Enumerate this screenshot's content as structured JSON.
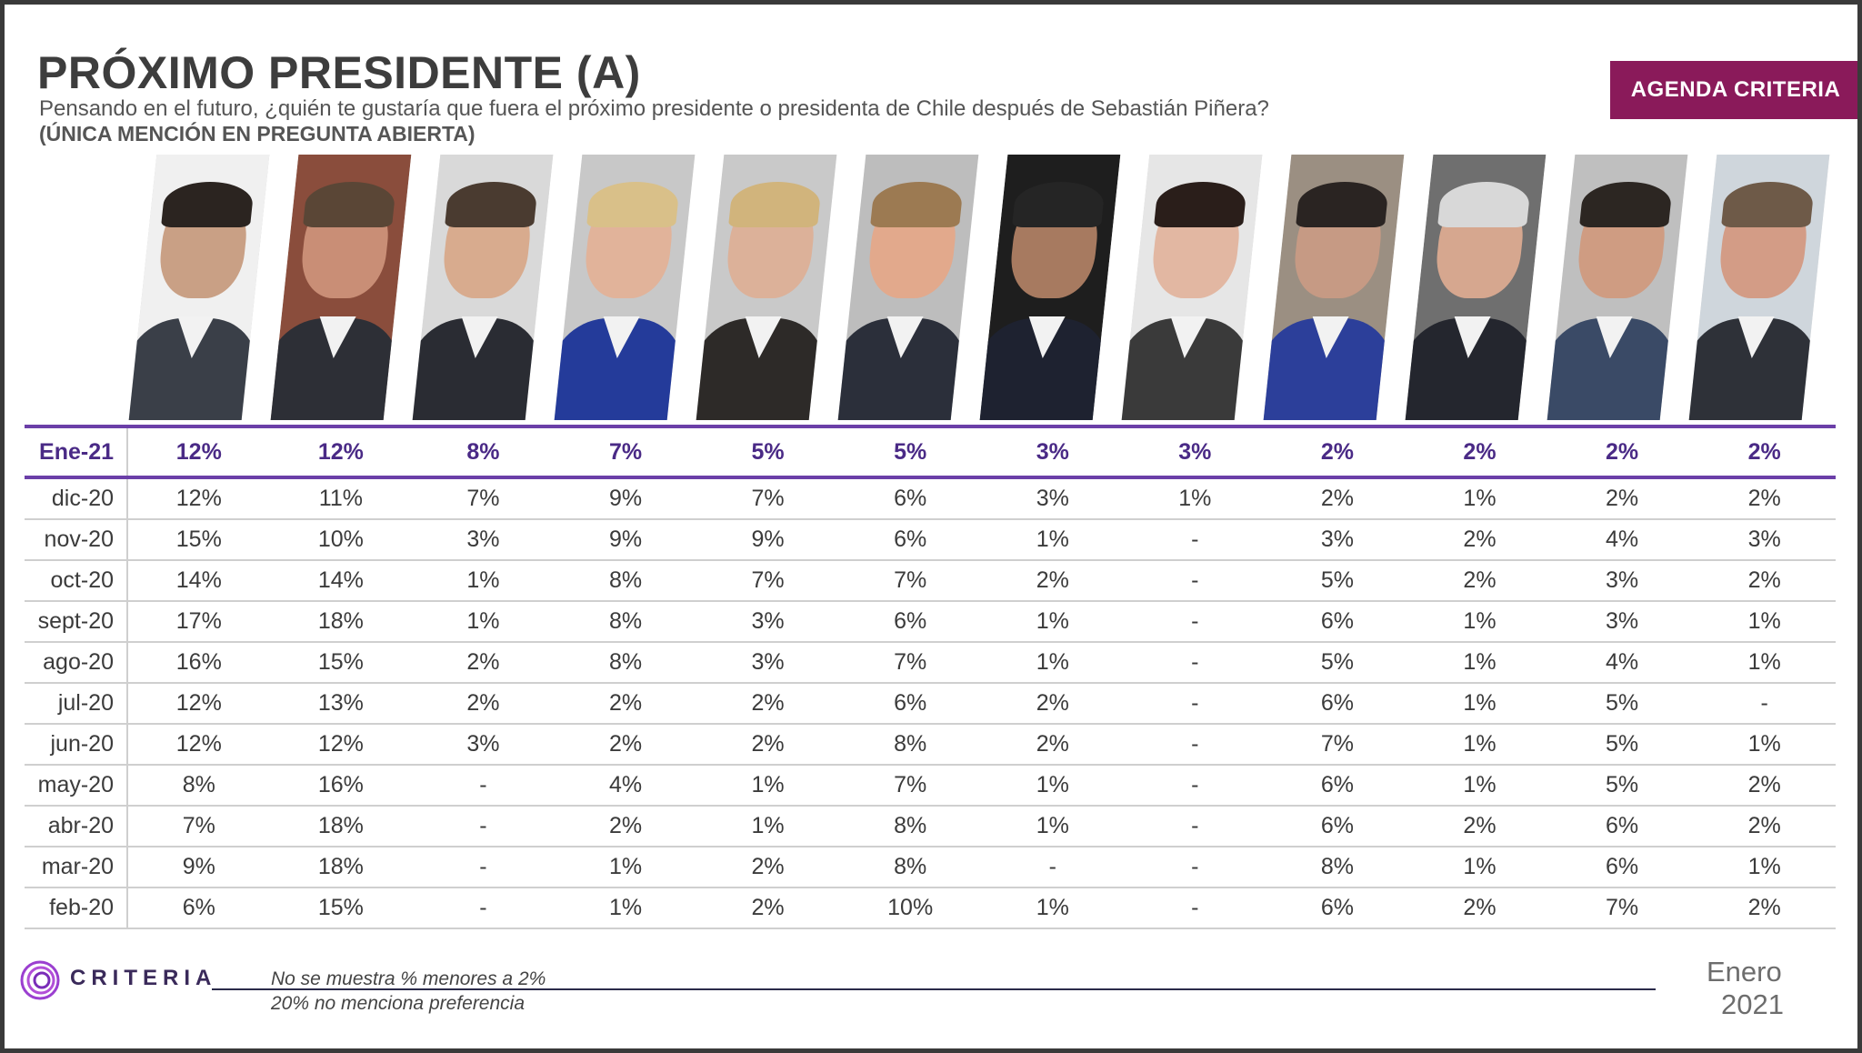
{
  "title": "PRÓXIMO PRESIDENTE (A)",
  "subtitle": "Pensando en el futuro, ¿quién te gustaría que fuera el próximo presidente o presidenta de Chile después de Sebastián Piñera?",
  "subtitle2": "(ÚNICA MENCIÓN EN PREGUNTA ABIERTA)",
  "badge": "AGENDA CRITERIA",
  "logo_text": "CRITERIA",
  "notes": [
    "No se muestra % menores a 2%",
    "20% no menciona preferencia"
  ],
  "date": {
    "month": "Enero",
    "year": "2021"
  },
  "photo_palette": [
    {
      "bg": "#f0f0f0",
      "hair": "#2b2420",
      "skin": "#c9a085",
      "body": "#3a3f48"
    },
    {
      "bg": "#8a4d3c",
      "hair": "#5a4636",
      "skin": "#c98e76",
      "body": "#2d2f36"
    },
    {
      "bg": "#d9d9d9",
      "hair": "#4a3b30",
      "skin": "#d8ab8e",
      "body": "#2a2c33"
    },
    {
      "bg": "#c8c8c8",
      "hair": "#d9c089",
      "skin": "#e1b39a",
      "body": "#243b9a"
    },
    {
      "bg": "#c9c9c9",
      "hair": "#d1b47c",
      "skin": "#dcb199",
      "body": "#2d2a28"
    },
    {
      "bg": "#bdbdbd",
      "hair": "#9c7a52",
      "skin": "#e2a98c",
      "body": "#2b2f3a"
    },
    {
      "bg": "#1e1e1e",
      "hair": "#252525",
      "skin": "#a77a60",
      "body": "#1e2230"
    },
    {
      "bg": "#e6e6e6",
      "hair": "#2a1e1a",
      "skin": "#e2b7a2",
      "body": "#3a3a3a"
    },
    {
      "bg": "#9b8f82",
      "hair": "#2a2422",
      "skin": "#c69a84",
      "body": "#2c3f9a"
    },
    {
      "bg": "#6f6f6f",
      "hair": "#d8d8d8",
      "skin": "#d6a78f",
      "body": "#24262e"
    },
    {
      "bg": "#bfbfbf",
      "hair": "#2c2622",
      "skin": "#cf9c82",
      "body": "#3a4a66"
    },
    {
      "bg": "#cfd6dc",
      "hair": "#6e5a48",
      "skin": "#d39c86",
      "body": "#2e3138"
    }
  ],
  "table": {
    "rows": [
      {
        "month": "Ene-21",
        "latest": true,
        "values": [
          "12%",
          "12%",
          "8%",
          "7%",
          "5%",
          "5%",
          "3%",
          "3%",
          "2%",
          "2%",
          "2%",
          "2%"
        ]
      },
      {
        "month": "dic-20",
        "values": [
          "12%",
          "11%",
          "7%",
          "9%",
          "7%",
          "6%",
          "3%",
          "1%",
          "2%",
          "1%",
          "2%",
          "2%"
        ]
      },
      {
        "month": "nov-20",
        "values": [
          "15%",
          "10%",
          "3%",
          "9%",
          "9%",
          "6%",
          "1%",
          "-",
          "3%",
          "2%",
          "4%",
          "3%"
        ]
      },
      {
        "month": "oct-20",
        "values": [
          "14%",
          "14%",
          "1%",
          "8%",
          "7%",
          "7%",
          "2%",
          "-",
          "5%",
          "2%",
          "3%",
          "2%"
        ]
      },
      {
        "month": "sept-20",
        "values": [
          "17%",
          "18%",
          "1%",
          "8%",
          "3%",
          "6%",
          "1%",
          "-",
          "6%",
          "1%",
          "3%",
          "1%"
        ]
      },
      {
        "month": "ago-20",
        "values": [
          "16%",
          "15%",
          "2%",
          "8%",
          "3%",
          "7%",
          "1%",
          "-",
          "5%",
          "1%",
          "4%",
          "1%"
        ]
      },
      {
        "month": "jul-20",
        "values": [
          "12%",
          "13%",
          "2%",
          "2%",
          "2%",
          "6%",
          "2%",
          "-",
          "6%",
          "1%",
          "5%",
          "-"
        ]
      },
      {
        "month": "jun-20",
        "values": [
          "12%",
          "12%",
          "3%",
          "2%",
          "2%",
          "8%",
          "2%",
          "-",
          "7%",
          "1%",
          "5%",
          "1%"
        ]
      },
      {
        "month": "may-20",
        "values": [
          "8%",
          "16%",
          "-",
          "4%",
          "1%",
          "7%",
          "1%",
          "-",
          "6%",
          "1%",
          "5%",
          "2%"
        ]
      },
      {
        "month": "abr-20",
        "values": [
          "7%",
          "18%",
          "-",
          "2%",
          "1%",
          "8%",
          "1%",
          "-",
          "6%",
          "2%",
          "6%",
          "2%"
        ]
      },
      {
        "month": "mar-20",
        "values": [
          "9%",
          "18%",
          "-",
          "1%",
          "2%",
          "8%",
          "-",
          "-",
          "8%",
          "1%",
          "6%",
          "1%"
        ]
      },
      {
        "month": "feb-20",
        "values": [
          "6%",
          "15%",
          "-",
          "1%",
          "2%",
          "10%",
          "1%",
          "-",
          "6%",
          "2%",
          "7%",
          "2%"
        ]
      }
    ]
  }
}
